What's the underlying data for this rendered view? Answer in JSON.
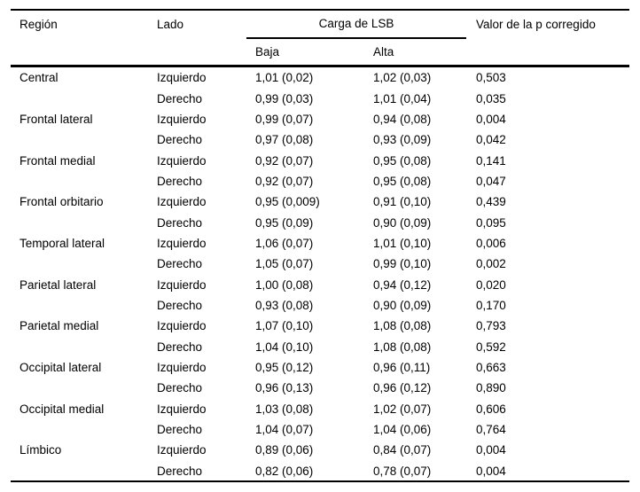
{
  "table": {
    "header": {
      "col_region": "Región",
      "col_lado": "Lado",
      "spanner": "Carga de LSB",
      "col_baja": "Baja",
      "col_alta": "Alta",
      "col_p": "Valor de la p corregido"
    },
    "rows": [
      {
        "region": "Central",
        "lado": "Izquierdo",
        "baja": "1,01 (0,02)",
        "alta": "1,02 (0,03)",
        "p": "0,503"
      },
      {
        "region": "",
        "lado": "Derecho",
        "baja": "0,99 (0,03)",
        "alta": "1,01 (0,04)",
        "p": "0,035"
      },
      {
        "region": "Frontal lateral",
        "lado": "Izquierdo",
        "baja": "0,99 (0,07)",
        "alta": "0,94 (0,08)",
        "p": "0,004"
      },
      {
        "region": "",
        "lado": "Derecho",
        "baja": "0,97 (0,08)",
        "alta": "0,93 (0,09)",
        "p": "0,042"
      },
      {
        "region": "Frontal medial",
        "lado": "Izquierdo",
        "baja": "0,92 (0,07)",
        "alta": "0,95 (0,08)",
        "p": "0,141"
      },
      {
        "region": "",
        "lado": "Derecho",
        "baja": "0,92 (0,07)",
        "alta": "0,95 (0,08)",
        "p": "0,047"
      },
      {
        "region": "Frontal orbitario",
        "lado": "Izquierdo",
        "baja": "0,95 (0,009)",
        "alta": "0,91 (0,10)",
        "p": "0,439"
      },
      {
        "region": "",
        "lado": "Derecho",
        "baja": "0,95 (0,09)",
        "alta": "0,90 (0,09)",
        "p": "0,095"
      },
      {
        "region": "Temporal lateral",
        "lado": "Izquierdo",
        "baja": "1,06 (0,07)",
        "alta": "1,01 (0,10)",
        "p": "0,006"
      },
      {
        "region": "",
        "lado": "Derecho",
        "baja": "1,05 (0,07)",
        "alta": "0,99 (0,10)",
        "p": "0,002"
      },
      {
        "region": "Parietal lateral",
        "lado": "Izquierdo",
        "baja": "1,00 (0,08)",
        "alta": "0,94 (0,12)",
        "p": "0,020"
      },
      {
        "region": "",
        "lado": "Derecho",
        "baja": "0,93 (0,08)",
        "alta": "0,90 (0,09)",
        "p": "0,170"
      },
      {
        "region": "Parietal medial",
        "lado": "Izquierdo",
        "baja": "1,07 (0,10)",
        "alta": "1,08 (0,08)",
        "p": "0,793"
      },
      {
        "region": "",
        "lado": "Derecho",
        "baja": "1,04 (0,10)",
        "alta": "1,08 (0,08)",
        "p": "0,592"
      },
      {
        "region": "Occipital lateral",
        "lado": "Izquierdo",
        "baja": "0,95 (0,12)",
        "alta": "0,96 (0,11)",
        "p": "0,663"
      },
      {
        "region": "",
        "lado": "Derecho",
        "baja": "0,96 (0,13)",
        "alta": "0,96 (0,12)",
        "p": "0,890"
      },
      {
        "region": "Occipital medial",
        "lado": "Izquierdo",
        "baja": "1,03 (0,08)",
        "alta": "1,02 (0,07)",
        "p": "0,606"
      },
      {
        "region": "",
        "lado": "Derecho",
        "baja": "1,04 (0,07)",
        "alta": "1,04 (0,06)",
        "p": "0,764"
      },
      {
        "region": "Límbico",
        "lado": "Izquierdo",
        "baja": "0,89 (0,06)",
        "alta": "0,84 (0,07)",
        "p": "0,004"
      },
      {
        "region": "",
        "lado": "Derecho",
        "baja": "0,82 (0,06)",
        "alta": "0,78 (0,07)",
        "p": "0,004"
      }
    ]
  }
}
